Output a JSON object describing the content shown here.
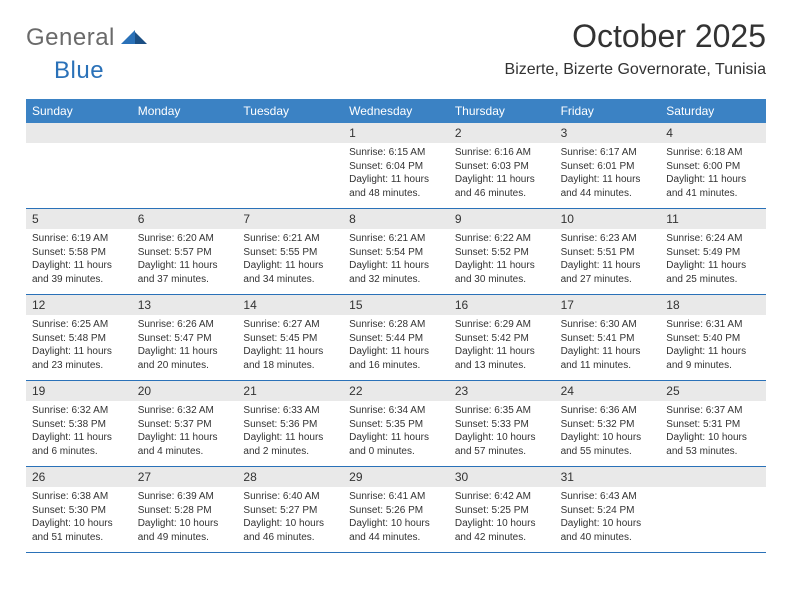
{
  "brand": {
    "part1": "General",
    "part2": "Blue"
  },
  "title": "October 2025",
  "location": "Bizerte, Bizerte Governorate, Tunisia",
  "colors": {
    "header_bg": "#3b82c4",
    "header_text": "#ffffff",
    "daynum_bg": "#e9e9e9",
    "divider": "#2a71b8",
    "text": "#333333",
    "logo_gray": "#6a6a6a",
    "logo_blue": "#2a71b8"
  },
  "weekdays": [
    "Sunday",
    "Monday",
    "Tuesday",
    "Wednesday",
    "Thursday",
    "Friday",
    "Saturday"
  ],
  "weeks": [
    [
      {
        "n": "",
        "lines": []
      },
      {
        "n": "",
        "lines": []
      },
      {
        "n": "",
        "lines": []
      },
      {
        "n": "1",
        "lines": [
          "Sunrise: 6:15 AM",
          "Sunset: 6:04 PM",
          "Daylight: 11 hours and 48 minutes."
        ]
      },
      {
        "n": "2",
        "lines": [
          "Sunrise: 6:16 AM",
          "Sunset: 6:03 PM",
          "Daylight: 11 hours and 46 minutes."
        ]
      },
      {
        "n": "3",
        "lines": [
          "Sunrise: 6:17 AM",
          "Sunset: 6:01 PM",
          "Daylight: 11 hours and 44 minutes."
        ]
      },
      {
        "n": "4",
        "lines": [
          "Sunrise: 6:18 AM",
          "Sunset: 6:00 PM",
          "Daylight: 11 hours and 41 minutes."
        ]
      }
    ],
    [
      {
        "n": "5",
        "lines": [
          "Sunrise: 6:19 AM",
          "Sunset: 5:58 PM",
          "Daylight: 11 hours and 39 minutes."
        ]
      },
      {
        "n": "6",
        "lines": [
          "Sunrise: 6:20 AM",
          "Sunset: 5:57 PM",
          "Daylight: 11 hours and 37 minutes."
        ]
      },
      {
        "n": "7",
        "lines": [
          "Sunrise: 6:21 AM",
          "Sunset: 5:55 PM",
          "Daylight: 11 hours and 34 minutes."
        ]
      },
      {
        "n": "8",
        "lines": [
          "Sunrise: 6:21 AM",
          "Sunset: 5:54 PM",
          "Daylight: 11 hours and 32 minutes."
        ]
      },
      {
        "n": "9",
        "lines": [
          "Sunrise: 6:22 AM",
          "Sunset: 5:52 PM",
          "Daylight: 11 hours and 30 minutes."
        ]
      },
      {
        "n": "10",
        "lines": [
          "Sunrise: 6:23 AM",
          "Sunset: 5:51 PM",
          "Daylight: 11 hours and 27 minutes."
        ]
      },
      {
        "n": "11",
        "lines": [
          "Sunrise: 6:24 AM",
          "Sunset: 5:49 PM",
          "Daylight: 11 hours and 25 minutes."
        ]
      }
    ],
    [
      {
        "n": "12",
        "lines": [
          "Sunrise: 6:25 AM",
          "Sunset: 5:48 PM",
          "Daylight: 11 hours and 23 minutes."
        ]
      },
      {
        "n": "13",
        "lines": [
          "Sunrise: 6:26 AM",
          "Sunset: 5:47 PM",
          "Daylight: 11 hours and 20 minutes."
        ]
      },
      {
        "n": "14",
        "lines": [
          "Sunrise: 6:27 AM",
          "Sunset: 5:45 PM",
          "Daylight: 11 hours and 18 minutes."
        ]
      },
      {
        "n": "15",
        "lines": [
          "Sunrise: 6:28 AM",
          "Sunset: 5:44 PM",
          "Daylight: 11 hours and 16 minutes."
        ]
      },
      {
        "n": "16",
        "lines": [
          "Sunrise: 6:29 AM",
          "Sunset: 5:42 PM",
          "Daylight: 11 hours and 13 minutes."
        ]
      },
      {
        "n": "17",
        "lines": [
          "Sunrise: 6:30 AM",
          "Sunset: 5:41 PM",
          "Daylight: 11 hours and 11 minutes."
        ]
      },
      {
        "n": "18",
        "lines": [
          "Sunrise: 6:31 AM",
          "Sunset: 5:40 PM",
          "Daylight: 11 hours and 9 minutes."
        ]
      }
    ],
    [
      {
        "n": "19",
        "lines": [
          "Sunrise: 6:32 AM",
          "Sunset: 5:38 PM",
          "Daylight: 11 hours and 6 minutes."
        ]
      },
      {
        "n": "20",
        "lines": [
          "Sunrise: 6:32 AM",
          "Sunset: 5:37 PM",
          "Daylight: 11 hours and 4 minutes."
        ]
      },
      {
        "n": "21",
        "lines": [
          "Sunrise: 6:33 AM",
          "Sunset: 5:36 PM",
          "Daylight: 11 hours and 2 minutes."
        ]
      },
      {
        "n": "22",
        "lines": [
          "Sunrise: 6:34 AM",
          "Sunset: 5:35 PM",
          "Daylight: 11 hours and 0 minutes."
        ]
      },
      {
        "n": "23",
        "lines": [
          "Sunrise: 6:35 AM",
          "Sunset: 5:33 PM",
          "Daylight: 10 hours and 57 minutes."
        ]
      },
      {
        "n": "24",
        "lines": [
          "Sunrise: 6:36 AM",
          "Sunset: 5:32 PM",
          "Daylight: 10 hours and 55 minutes."
        ]
      },
      {
        "n": "25",
        "lines": [
          "Sunrise: 6:37 AM",
          "Sunset: 5:31 PM",
          "Daylight: 10 hours and 53 minutes."
        ]
      }
    ],
    [
      {
        "n": "26",
        "lines": [
          "Sunrise: 6:38 AM",
          "Sunset: 5:30 PM",
          "Daylight: 10 hours and 51 minutes."
        ]
      },
      {
        "n": "27",
        "lines": [
          "Sunrise: 6:39 AM",
          "Sunset: 5:28 PM",
          "Daylight: 10 hours and 49 minutes."
        ]
      },
      {
        "n": "28",
        "lines": [
          "Sunrise: 6:40 AM",
          "Sunset: 5:27 PM",
          "Daylight: 10 hours and 46 minutes."
        ]
      },
      {
        "n": "29",
        "lines": [
          "Sunrise: 6:41 AM",
          "Sunset: 5:26 PM",
          "Daylight: 10 hours and 44 minutes."
        ]
      },
      {
        "n": "30",
        "lines": [
          "Sunrise: 6:42 AM",
          "Sunset: 5:25 PM",
          "Daylight: 10 hours and 42 minutes."
        ]
      },
      {
        "n": "31",
        "lines": [
          "Sunrise: 6:43 AM",
          "Sunset: 5:24 PM",
          "Daylight: 10 hours and 40 minutes."
        ]
      },
      {
        "n": "",
        "lines": []
      }
    ]
  ]
}
